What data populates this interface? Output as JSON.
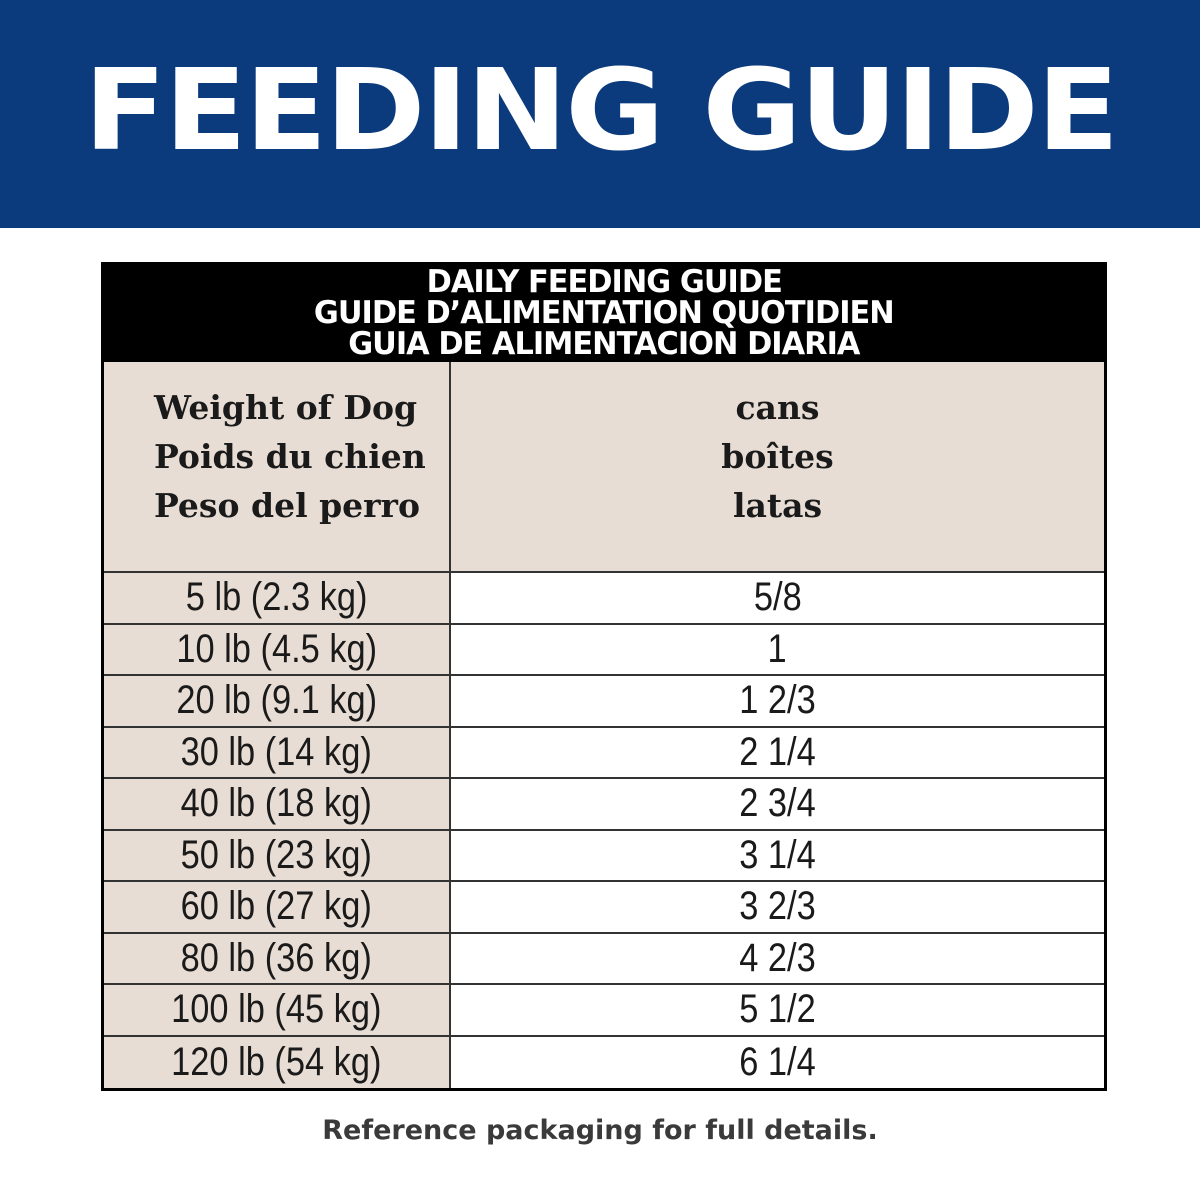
{
  "banner": {
    "title": "FEEDING GUIDE",
    "background_color": "#0b3b7c"
  },
  "table": {
    "title_lines": [
      "DAILY FEEDING GUIDE",
      "GUIDE D’ALIMENTATION QUOTIDIEN",
      "GUIA DE ALIMENTACION DIARIA"
    ],
    "columns": {
      "weight": [
        "Weight of Dog",
        "Poids du chien",
        "Peso del perro"
      ],
      "amount": [
        "cans",
        "boîtes",
        "latas"
      ]
    },
    "rows": [
      {
        "weight": "5 lb (2.3 kg)",
        "cans": "5/8"
      },
      {
        "weight": "10 lb (4.5 kg)",
        "cans": "1"
      },
      {
        "weight": "20 lb (9.1 kg)",
        "cans": "1 2/3"
      },
      {
        "weight": "30 lb (14 kg)",
        "cans": "2 1/4"
      },
      {
        "weight": "40 lb (18 kg)",
        "cans": "2 3/4"
      },
      {
        "weight": "50 lb (23 kg)",
        "cans": "3 1/4"
      },
      {
        "weight": "60 lb (27 kg)",
        "cans": "3 2/3"
      },
      {
        "weight": "80 lb (36 kg)",
        "cans": "4 2/3"
      },
      {
        "weight": "100 lb (45 kg)",
        "cans": "5 1/2"
      },
      {
        "weight": "120 lb (54 kg)",
        "cans": "6 1/4"
      }
    ],
    "header_bg": "#000000",
    "label_column_bg": "#e8ddd4"
  },
  "footnote": "Reference packaging for full details."
}
